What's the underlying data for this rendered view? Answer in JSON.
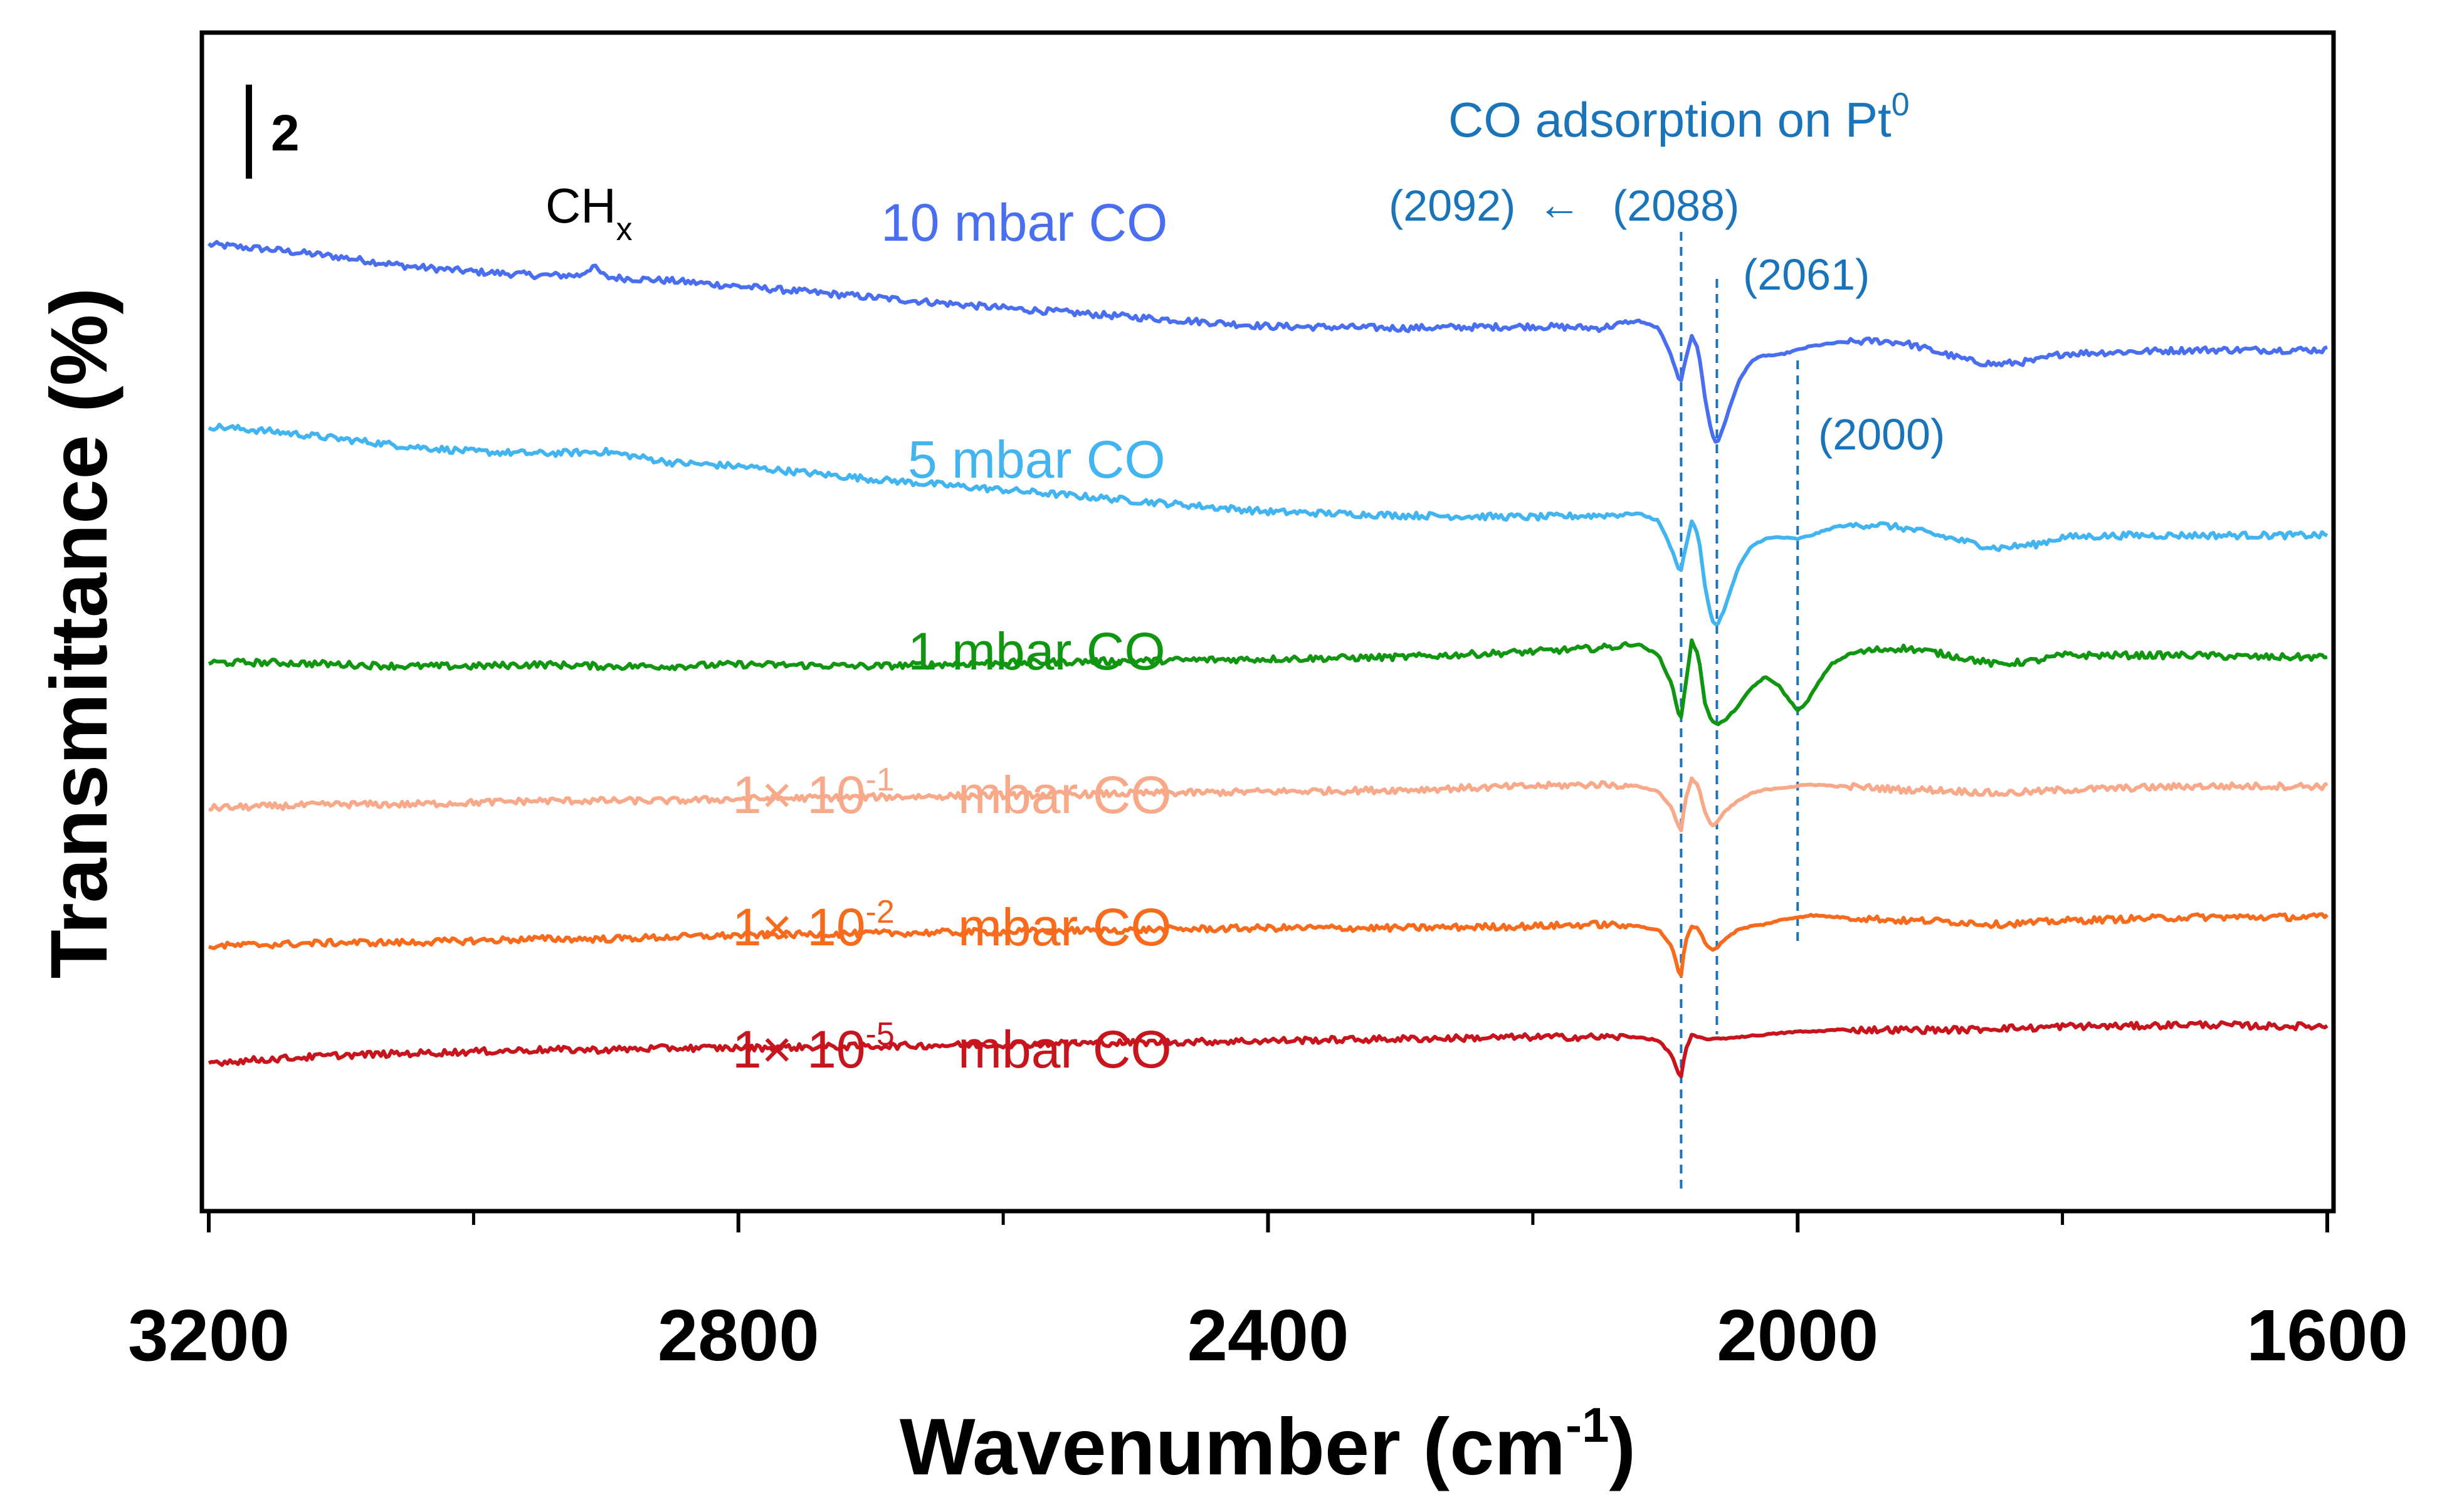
{
  "chart_data": {
    "type": "line",
    "title": "",
    "xlabel": "Wavenumber (cm",
    "xlabel_sup": "-1",
    "xlabel_end": ")",
    "ylabel": "Transmittance (%)",
    "xlim": [
      3200,
      1600
    ],
    "x_reversed": true,
    "y_ticks_shown": false,
    "x_major_ticks": [
      3200,
      2800,
      2400,
      2000,
      1600
    ],
    "x_major_tick_labels": [
      "3200",
      "2800",
      "2400",
      "2000",
      "1600"
    ],
    "x_minor_ticks": [
      3000,
      2600,
      2200,
      1800
    ],
    "scale_bar": {
      "label": "2",
      "value_units": 2
    },
    "series": [
      {
        "name": "10 mbar CO",
        "label_base": "10 mbar CO",
        "color": "#4a6ef0",
        "x": [
          3200,
          3150,
          3100,
          3050,
          3000,
          2950,
          2920,
          2910,
          2900,
          2850,
          2800,
          2700,
          2600,
          2500,
          2400,
          2300,
          2200,
          2150,
          2120,
          2105,
          2095,
          2090,
          2088,
          2085,
          2080,
          2075,
          2070,
          2065,
          2061,
          2055,
          2045,
          2035,
          2025,
          2015,
          2000,
          1990,
          1970,
          1940,
          1920,
          1900,
          1870,
          1850,
          1820,
          1800,
          1750,
          1700,
          1650,
          1600
        ],
        "y": [
          0.0,
          -0.15,
          -0.35,
          -0.6,
          -0.75,
          -0.85,
          -0.85,
          -0.6,
          -0.9,
          -1.0,
          -1.15,
          -1.45,
          -1.75,
          -2.0,
          -2.25,
          -2.3,
          -2.25,
          -2.3,
          -2.1,
          -2.3,
          -3.1,
          -3.7,
          -3.75,
          -3.2,
          -2.5,
          -2.9,
          -4.2,
          -5.2,
          -5.5,
          -4.9,
          -3.8,
          -3.2,
          -3.05,
          -3.05,
          -2.9,
          -2.8,
          -2.7,
          -2.65,
          -2.7,
          -2.9,
          -3.2,
          -3.3,
          -3.2,
          -3.0,
          -2.95,
          -2.9,
          -2.9,
          -2.9
        ]
      },
      {
        "name": "5 mbar CO",
        "label_base": "5 mbar CO",
        "color": "#42b4f0",
        "x": [
          3200,
          3150,
          3100,
          3050,
          3000,
          2950,
          2900,
          2850,
          2800,
          2700,
          2600,
          2500,
          2400,
          2300,
          2200,
          2150,
          2120,
          2105,
          2095,
          2090,
          2088,
          2085,
          2080,
          2075,
          2070,
          2065,
          2061,
          2055,
          2045,
          2035,
          2025,
          2015,
          2000,
          1990,
          1970,
          1940,
          1920,
          1900,
          1870,
          1850,
          1820,
          1800,
          1750,
          1700,
          1650,
          1600
        ],
        "y": [
          -5.0,
          -5.15,
          -5.35,
          -5.55,
          -5.7,
          -5.75,
          -5.7,
          -6.0,
          -6.1,
          -6.45,
          -6.75,
          -7.05,
          -7.35,
          -7.45,
          -7.5,
          -7.45,
          -7.4,
          -7.6,
          -8.4,
          -8.9,
          -8.95,
          -8.4,
          -7.6,
          -8.0,
          -9.4,
          -10.3,
          -10.5,
          -10.0,
          -8.9,
          -8.3,
          -8.1,
          -8.05,
          -8.1,
          -8.0,
          -7.75,
          -7.7,
          -7.8,
          -7.95,
          -8.2,
          -8.35,
          -8.25,
          -8.05,
          -8.0,
          -8.0,
          -8.0,
          -8.0
        ]
      },
      {
        "name": "1 mbar CO",
        "label_base": "1 mbar CO",
        "color": "#119611",
        "x": [
          3200,
          3150,
          3100,
          3050,
          3000,
          2950,
          2900,
          2850,
          2800,
          2700,
          2600,
          2500,
          2400,
          2300,
          2200,
          2150,
          2120,
          2105,
          2095,
          2090,
          2088,
          2085,
          2080,
          2075,
          2070,
          2065,
          2061,
          2055,
          2045,
          2035,
          2025,
          2015,
          2005,
          2000,
          1995,
          1985,
          1975,
          1960,
          1940,
          1920,
          1900,
          1870,
          1850,
          1820,
          1800,
          1750,
          1700,
          1650,
          1600
        ],
        "y": [
          -11.5,
          -11.5,
          -11.55,
          -11.6,
          -11.6,
          -11.55,
          -11.6,
          -11.6,
          -11.55,
          -11.6,
          -11.5,
          -11.45,
          -11.4,
          -11.35,
          -11.2,
          -11.1,
          -11.0,
          -11.3,
          -12.1,
          -12.9,
          -13.0,
          -12.2,
          -10.9,
          -11.3,
          -12.6,
          -13.1,
          -13.2,
          -13.1,
          -12.7,
          -12.2,
          -11.9,
          -12.1,
          -12.6,
          -12.8,
          -12.7,
          -12.1,
          -11.55,
          -11.25,
          -11.15,
          -11.1,
          -11.2,
          -11.4,
          -11.55,
          -11.45,
          -11.3,
          -11.3,
          -11.3,
          -11.35,
          -11.35
        ]
      },
      {
        "name": "1× 10-1 mbar CO",
        "label_base": "1× 10",
        "label_exp": "-1",
        "label_unit": "mbar CO",
        "color": "#f8a98a",
        "x": [
          3200,
          3150,
          3100,
          3050,
          3000,
          2950,
          2900,
          2850,
          2800,
          2700,
          2600,
          2500,
          2400,
          2300,
          2200,
          2150,
          2120,
          2105,
          2095,
          2090,
          2088,
          2085,
          2080,
          2075,
          2070,
          2065,
          2061,
          2055,
          2045,
          2035,
          2025,
          2015,
          2000,
          1990,
          1970,
          1940,
          1920,
          1900,
          1870,
          1850,
          1820,
          1800,
          1750,
          1700,
          1650,
          1600
        ],
        "y": [
          -15.5,
          -15.45,
          -15.4,
          -15.4,
          -15.35,
          -15.3,
          -15.3,
          -15.3,
          -15.25,
          -15.2,
          -15.15,
          -15.1,
          -15.05,
          -15.0,
          -14.9,
          -14.85,
          -14.9,
          -15.05,
          -15.5,
          -16.0,
          -16.1,
          -15.3,
          -14.7,
          -14.9,
          -15.6,
          -16.0,
          -15.9,
          -15.6,
          -15.3,
          -15.1,
          -15.0,
          -14.95,
          -14.9,
          -14.85,
          -14.9,
          -14.95,
          -15.0,
          -15.0,
          -15.05,
          -15.1,
          -15.05,
          -15.0,
          -14.95,
          -14.9,
          -14.9,
          -14.9
        ]
      },
      {
        "name": "1× 10-2 mbar CO",
        "label_base": "1× 10",
        "label_exp": "-2",
        "label_unit": "mbar CO",
        "color": "#f86a1c",
        "x": [
          3200,
          3150,
          3100,
          3050,
          3000,
          2950,
          2900,
          2850,
          2800,
          2700,
          2600,
          2500,
          2400,
          2300,
          2200,
          2150,
          2120,
          2105,
          2095,
          2090,
          2088,
          2085,
          2080,
          2075,
          2070,
          2065,
          2061,
          2055,
          2045,
          2035,
          2025,
          2015,
          2000,
          1990,
          1970,
          1940,
          1920,
          1900,
          1870,
          1850,
          1820,
          1800,
          1750,
          1700,
          1650,
          1600
        ],
        "y": [
          -19.3,
          -19.25,
          -19.2,
          -19.2,
          -19.15,
          -19.1,
          -19.1,
          -19.05,
          -19.0,
          -18.95,
          -18.9,
          -18.85,
          -18.8,
          -18.8,
          -18.75,
          -18.7,
          -18.75,
          -18.85,
          -19.3,
          -20.0,
          -20.1,
          -19.2,
          -18.75,
          -18.8,
          -19.2,
          -19.4,
          -19.35,
          -19.1,
          -18.85,
          -18.75,
          -18.7,
          -18.6,
          -18.5,
          -18.45,
          -18.5,
          -18.55,
          -18.6,
          -18.6,
          -18.65,
          -18.7,
          -18.65,
          -18.6,
          -18.55,
          -18.5,
          -18.5,
          -18.5
        ]
      },
      {
        "name": "1× 10-5 mbar CO",
        "label_base": "1× 10",
        "label_exp": "-5",
        "label_unit": "mbar CO",
        "color": "#c8141c",
        "x": [
          3200,
          3150,
          3100,
          3050,
          3000,
          2950,
          2900,
          2850,
          2800,
          2700,
          2600,
          2500,
          2400,
          2300,
          2200,
          2150,
          2120,
          2105,
          2095,
          2090,
          2088,
          2085,
          2080,
          2075,
          2070,
          2060,
          2045,
          2030,
          2015,
          2000,
          1990,
          1970,
          1940,
          1920,
          1900,
          1870,
          1850,
          1820,
          1800,
          1750,
          1700,
          1650,
          1600
        ],
        "y": [
          -22.5,
          -22.4,
          -22.3,
          -22.25,
          -22.2,
          -22.15,
          -22.15,
          -22.1,
          -22.1,
          -22.05,
          -22.0,
          -21.95,
          -21.9,
          -21.85,
          -21.8,
          -21.8,
          -21.8,
          -21.9,
          -22.3,
          -22.8,
          -22.9,
          -22.2,
          -21.75,
          -21.8,
          -21.85,
          -21.85,
          -21.8,
          -21.75,
          -21.7,
          -21.65,
          -21.65,
          -21.6,
          -21.6,
          -21.6,
          -21.6,
          -21.6,
          -21.55,
          -21.55,
          -21.5,
          -21.5,
          -21.45,
          -21.5,
          -21.5
        ]
      }
    ],
    "peak_markers": [
      {
        "x": 2088,
        "label": "(2088)"
      },
      {
        "x": 2061,
        "label": "(2061)"
      },
      {
        "x": 2000,
        "label": "(2000)"
      }
    ],
    "shift_label": "(2092)",
    "shift_arrow": "←",
    "annotation_co": "CO adsorption on Pt",
    "annotation_co_sup": "0",
    "annotation_chx": "CH",
    "annotation_chx_sub": "x"
  },
  "colors": {
    "annotation": "#1a74ba",
    "axis": "#000000"
  }
}
